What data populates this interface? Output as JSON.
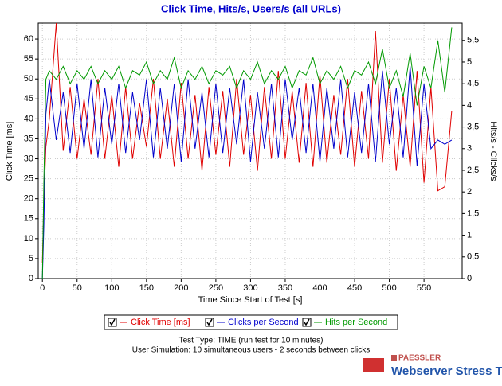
{
  "chart_data": {
    "type": "line",
    "title": "Click Time, Hits/s, Users/s (all URLs)",
    "x_label": "Time Since Start of Test [s]",
    "y_label": "Click Time [ms]",
    "y2_label": "Hits/s - Clicks/s",
    "x": [
      0,
      2,
      5,
      10,
      20,
      30,
      40,
      50,
      60,
      70,
      80,
      90,
      100,
      110,
      120,
      130,
      140,
      150,
      160,
      170,
      180,
      190,
      200,
      210,
      220,
      230,
      240,
      250,
      260,
      270,
      280,
      290,
      300,
      310,
      320,
      330,
      340,
      350,
      360,
      370,
      380,
      390,
      400,
      410,
      420,
      430,
      440,
      450,
      460,
      470,
      480,
      490,
      500,
      510,
      520,
      530,
      540,
      550,
      560,
      570,
      580,
      590
    ],
    "series": [
      {
        "name": "Click Time [ms]",
        "color": "#e00000",
        "values": [
          4,
          19,
          33,
          40,
          64,
          32,
          48,
          30,
          45,
          31,
          50,
          30,
          46,
          28,
          48,
          30,
          44,
          33,
          50,
          30,
          45,
          28,
          49,
          30,
          46,
          27,
          48,
          31,
          47,
          28,
          50,
          31,
          46,
          27,
          48,
          30,
          52,
          30,
          47,
          29,
          49,
          28,
          51,
          29,
          46,
          31,
          50,
          28,
          47,
          30,
          62,
          29,
          50,
          27,
          46,
          28,
          52,
          24,
          48,
          22,
          23,
          42
        ]
      },
      {
        "name": "Clicks per Second",
        "color": "#0000cc",
        "axis": "y2",
        "values": [
          0,
          1.2,
          3.8,
          4.6,
          3.2,
          4.3,
          2.9,
          4.5,
          3.0,
          4.6,
          2.8,
          4.4,
          3.1,
          4.5,
          2.9,
          4.3,
          3.2,
          4.6,
          2.8,
          4.4,
          3.0,
          4.5,
          2.7,
          4.6,
          3.0,
          4.3,
          2.8,
          4.5,
          2.9,
          4.4,
          3.1,
          4.6,
          2.7,
          4.3,
          3.0,
          4.5,
          2.8,
          4.6,
          3.2,
          4.4,
          2.9,
          4.5,
          2.7,
          4.4,
          3.0,
          4.6,
          2.8,
          4.3,
          2.9,
          4.5,
          2.7,
          4.8,
          3.1,
          4.4,
          2.8,
          4.9,
          2.6,
          4.5,
          3.0,
          3.2,
          3.1,
          3.2
        ]
      },
      {
        "name": "Hits per Second",
        "color": "#009900",
        "axis": "y2",
        "values": [
          0,
          2.2,
          4.6,
          4.8,
          4.6,
          4.9,
          4.5,
          4.8,
          4.6,
          4.9,
          4.5,
          4.8,
          4.6,
          4.9,
          4.4,
          4.8,
          4.7,
          5.0,
          4.5,
          4.8,
          4.6,
          5.1,
          4.4,
          4.8,
          4.6,
          4.9,
          4.5,
          4.8,
          4.7,
          4.9,
          4.4,
          4.8,
          4.6,
          5.0,
          4.5,
          4.8,
          4.6,
          4.9,
          4.4,
          4.8,
          4.7,
          5.1,
          4.5,
          4.8,
          4.6,
          4.9,
          4.4,
          4.8,
          4.7,
          5.0,
          4.5,
          5.3,
          4.4,
          4.8,
          4.2,
          5.2,
          4.0,
          4.9,
          4.4,
          5.5,
          4.3,
          5.8
        ]
      }
    ],
    "xlim": [
      -6,
      605
    ],
    "xticks": [
      0,
      50,
      100,
      150,
      200,
      250,
      300,
      350,
      400,
      450,
      500,
      550
    ],
    "ylim": [
      0,
      64
    ],
    "yticks": [
      0,
      5,
      10,
      15,
      20,
      25,
      30,
      35,
      40,
      45,
      50,
      55,
      60
    ],
    "y2lim": [
      0,
      5.9
    ],
    "y2ticks": [
      0,
      {
        "value": 0.5,
        "label": "0,5"
      },
      1,
      {
        "value": 1.5,
        "label": "1,5"
      },
      2,
      {
        "value": 2.5,
        "label": "2,5"
      },
      3,
      {
        "value": 3.5,
        "label": "3,5"
      },
      4,
      {
        "value": 4.5,
        "label": "4,5"
      },
      5,
      {
        "value": 5.5,
        "label": "5,5"
      }
    ],
    "grid": true
  },
  "footer": {
    "line1": "Test Type: TIME (run test for 10 minutes)",
    "line2": "User Simulation: 10 simultaneous users - 2 seconds between clicks",
    "brand": "PAESSLER",
    "product": "Webserver Stress Tool"
  }
}
